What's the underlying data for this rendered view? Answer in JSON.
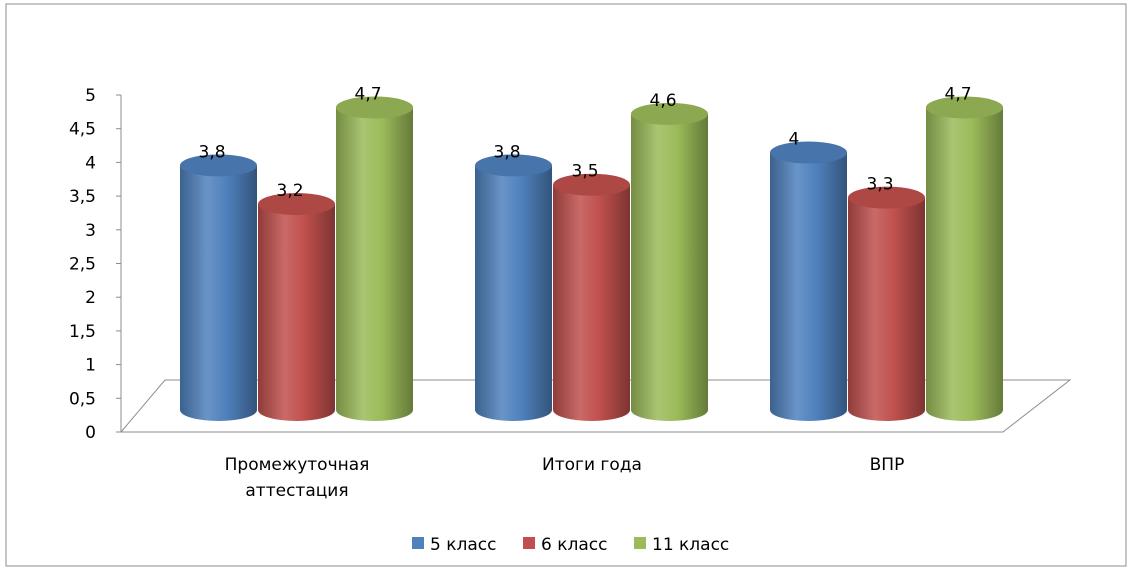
{
  "chart_data": {
    "type": "bar",
    "categories": [
      [
        "Промежуточная",
        "аттестация"
      ],
      [
        "Итоги года"
      ],
      [
        "ВПР"
      ]
    ],
    "series": [
      {
        "name": "5 класс",
        "color": "#4f81bd",
        "values": [
          3.8,
          3.8,
          4
        ],
        "labels": [
          "3,8",
          "3,8",
          "4"
        ]
      },
      {
        "name": "6 класс",
        "color": "#c0504d",
        "values": [
          3.2,
          3.5,
          3.3
        ],
        "labels": [
          "3,2",
          "3,5",
          "3,3"
        ]
      },
      {
        "name": "11 класс",
        "color": "#9bbb59",
        "values": [
          4.7,
          4.6,
          4.7
        ],
        "labels": [
          "4,7",
          "4,6",
          "4,7"
        ]
      }
    ],
    "ylim": [
      0,
      5
    ],
    "yticks": [
      0,
      0.5,
      1,
      1.5,
      2,
      2.5,
      3,
      3.5,
      4,
      4.5,
      5
    ],
    "ytick_labels": [
      "0",
      "0,5",
      "1",
      "1,5",
      "2",
      "2,5",
      "3",
      "3,5",
      "4",
      "4,5",
      "5"
    ],
    "legend_position": "bottom",
    "style": "3d-cylinder",
    "grid": false
  }
}
